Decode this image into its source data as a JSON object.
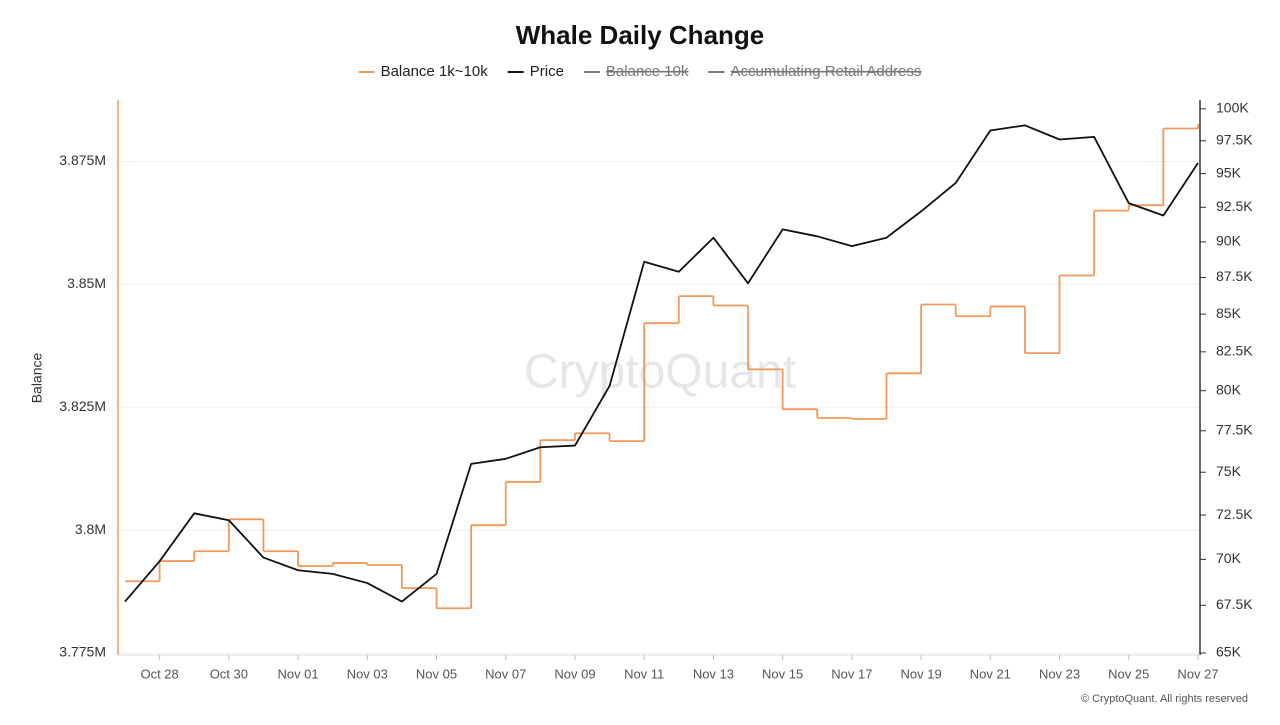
{
  "chart_data": {
    "type": "step-line",
    "title": "Whale Daily Change",
    "y_label": "Balance",
    "watermark": "CryptoQuant",
    "footer": "© CryptoQuant. All rights reserved",
    "categories": [
      null,
      "Oct 28",
      null,
      "Oct 30",
      null,
      "Nov 01",
      null,
      "Nov 03",
      null,
      "Nov 05",
      null,
      "Nov 07",
      null,
      "Nov 09",
      null,
      "Nov 11",
      null,
      "Nov 13",
      null,
      "Nov 15",
      null,
      "Nov 17",
      null,
      "Nov 19",
      null,
      "Nov 21",
      null,
      "Nov 23",
      null,
      "Nov 25",
      null,
      "Nov 27"
    ],
    "series": [
      {
        "name": "Balance 1k~10k",
        "color": "#f2995a",
        "style": "step",
        "axis": "y",
        "values": [
          3789600,
          3793700,
          3795700,
          3802200,
          3795700,
          3792700,
          3793300,
          3792900,
          3788200,
          3784100,
          3801000,
          3809800,
          3818300,
          3819700,
          3818100,
          3842100,
          3847600,
          3845700,
          3832700,
          3824600,
          3822800,
          3822600,
          3831900,
          3845900,
          3843500,
          3845500,
          3836000,
          3851800,
          3865000,
          3866100,
          3881700,
          3882500
        ]
      },
      {
        "name": "Price",
        "color": "#111111",
        "style": "line",
        "axis": "y2",
        "values": [
          67700,
          69900,
          72600,
          72200,
          70100,
          69400,
          69200,
          68700,
          67700,
          69200,
          75500,
          75800,
          76500,
          76600,
          80300,
          88600,
          87900,
          90300,
          87100,
          90900,
          90400,
          89700,
          90300,
          92200,
          94300,
          98300,
          98700,
          97600,
          97800,
          92800,
          91900,
          95800
        ]
      }
    ],
    "hidden_series": [
      {
        "name": "Balance 10k",
        "color": "#777777"
      },
      {
        "name": "Accumulating Retail Address",
        "color": "#777777"
      }
    ],
    "ylim": [
      3775000,
      3887500
    ],
    "yticks": [
      {
        "value": 3775000,
        "label": "3.775M"
      },
      {
        "value": 3800000,
        "label": "3.8M"
      },
      {
        "value": 3825000,
        "label": "3.825M"
      },
      {
        "value": 3850000,
        "label": "3.85M"
      },
      {
        "value": 3875000,
        "label": "3.875M"
      }
    ],
    "y2lim": [
      65000,
      100700
    ],
    "y2_log": true,
    "y2ticks": [
      {
        "value": 65000,
        "label": "65K"
      },
      {
        "value": 67500,
        "label": "67.5K"
      },
      {
        "value": 70000,
        "label": "70K"
      },
      {
        "value": 72500,
        "label": "72.5K"
      },
      {
        "value": 75000,
        "label": "75K"
      },
      {
        "value": 77500,
        "label": "77.5K"
      },
      {
        "value": 80000,
        "label": "80K"
      },
      {
        "value": 82500,
        "label": "82.5K"
      },
      {
        "value": 85000,
        "label": "85K"
      },
      {
        "value": 87500,
        "label": "87.5K"
      },
      {
        "value": 90000,
        "label": "90K"
      },
      {
        "value": 92500,
        "label": "92.5K"
      },
      {
        "value": 95000,
        "label": "95K"
      },
      {
        "value": 97500,
        "label": "97.5K"
      },
      {
        "value": 100000,
        "label": "100K"
      }
    ],
    "grid": true
  }
}
